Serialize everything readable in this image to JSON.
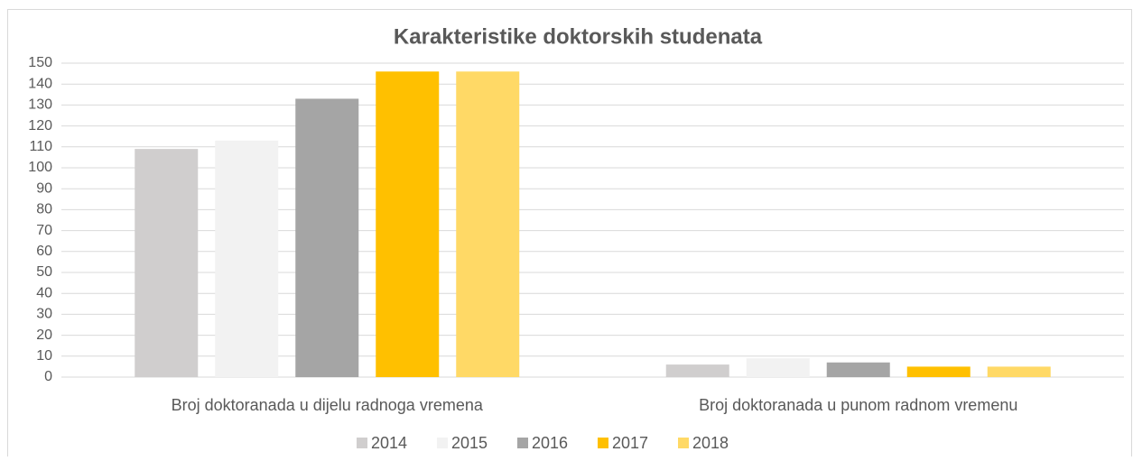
{
  "chart_data": {
    "type": "bar",
    "title": "Karakteristike doktorskih studenata",
    "categories": [
      "Broj doktoranada u dijelu radnoga vremena",
      "Broj doktoranada u punom radnom vremenu"
    ],
    "series": [
      {
        "name": "2014",
        "color": "#d0cece",
        "values": [
          109,
          6
        ]
      },
      {
        "name": "2015",
        "color": "#f2f2f2",
        "values": [
          113,
          9
        ]
      },
      {
        "name": "2016",
        "color": "#a5a5a5",
        "values": [
          133,
          7
        ]
      },
      {
        "name": "2017",
        "color": "#ffc000",
        "values": [
          146,
          5
        ]
      },
      {
        "name": "2018",
        "color": "#ffd966",
        "values": [
          146,
          5
        ]
      }
    ],
    "ylim": [
      0,
      150
    ],
    "yticks": [
      0,
      10,
      20,
      30,
      40,
      50,
      60,
      70,
      80,
      90,
      100,
      110,
      120,
      130,
      140,
      150
    ],
    "grid": true,
    "legend": "bottom"
  }
}
